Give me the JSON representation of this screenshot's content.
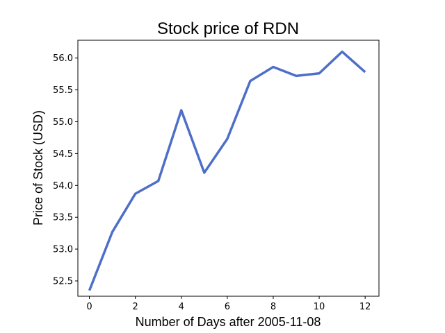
{
  "chart_data": {
    "type": "line",
    "title": "Stock price of RDN",
    "xlabel": "Number of Days after 2005-11-08",
    "ylabel": "Price of Stock (USD)",
    "x": [
      0,
      1,
      2,
      3,
      4,
      5,
      6,
      7,
      8,
      9,
      10,
      11,
      12
    ],
    "series": [
      {
        "values": [
          52.35,
          53.27,
          53.87,
          54.07,
          55.18,
          54.2,
          54.73,
          55.64,
          55.86,
          55.72,
          55.76,
          56.1,
          55.78
        ],
        "color": "#4e6fc8"
      }
    ],
    "xlim": [
      -0.5,
      12.6
    ],
    "ylim": [
      52.26,
      56.28
    ],
    "xticks": [
      0,
      2,
      4,
      6,
      8,
      10,
      12
    ],
    "xtick_labels": [
      "0",
      "2",
      "4",
      "6",
      "8",
      "10",
      "12"
    ],
    "yticks": [
      52.5,
      53.0,
      53.5,
      54.0,
      54.5,
      55.0,
      55.5,
      56.0
    ],
    "ytick_labels": [
      "52.5",
      "53.0",
      "53.5",
      "54.0",
      "54.5",
      "55.0",
      "55.5",
      "56.0"
    ],
    "grid": false,
    "legend": "none"
  }
}
